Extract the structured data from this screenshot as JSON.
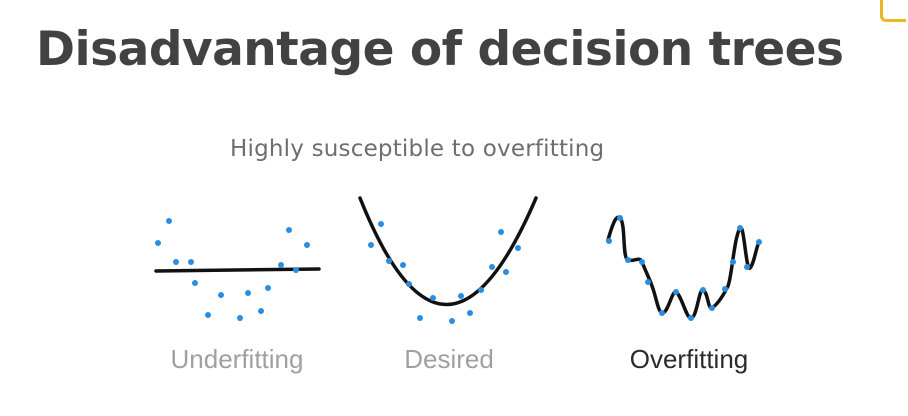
{
  "slide": {
    "title": "Disadvantage of decision trees",
    "subtitle": "Highly susceptible to overfitting"
  },
  "colors": {
    "title": "#424242",
    "subtitle": "#6e6e6e",
    "curve": "#111111",
    "points": "#2a8ee0",
    "muted_label": "#a0a0a0",
    "active_label": "#2b2b2b",
    "accent": "#f0b429"
  },
  "panels": [
    {
      "label": "Underfitting",
      "emphasis": "muted"
    },
    {
      "label": "Desired",
      "emphasis": "muted"
    },
    {
      "label": "Overfitting",
      "emphasis": "active"
    }
  ]
}
